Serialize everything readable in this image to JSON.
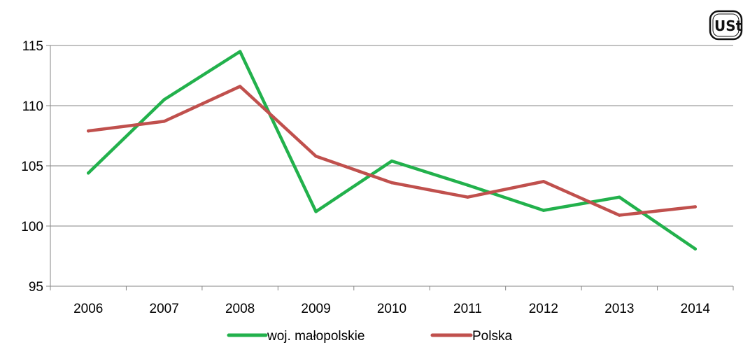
{
  "chart_data": {
    "type": "line",
    "title": "",
    "xlabel": "",
    "ylabel": "",
    "categories": [
      "2006",
      "2007",
      "2008",
      "2009",
      "2010",
      "2011",
      "2012",
      "2013",
      "2014"
    ],
    "ylim": [
      95,
      115
    ],
    "yticks": [
      95,
      100,
      105,
      110,
      115
    ],
    "ytick_labels": [
      "95",
      "100",
      "105",
      "110",
      "115"
    ],
    "grid": true,
    "legend_position": "bottom",
    "series": [
      {
        "name": "woj. małopolskie",
        "color": "#22b14c",
        "values": [
          104.4,
          110.5,
          114.5,
          101.2,
          105.4,
          103.4,
          101.3,
          102.4,
          98.1
        ]
      },
      {
        "name": "Polska",
        "color": "#c0504d",
        "values": [
          107.9,
          108.7,
          111.6,
          105.8,
          103.6,
          102.4,
          103.7,
          100.9,
          101.6
        ]
      }
    ]
  },
  "logo": {
    "name": "ustat-logo",
    "text": "UStat"
  }
}
